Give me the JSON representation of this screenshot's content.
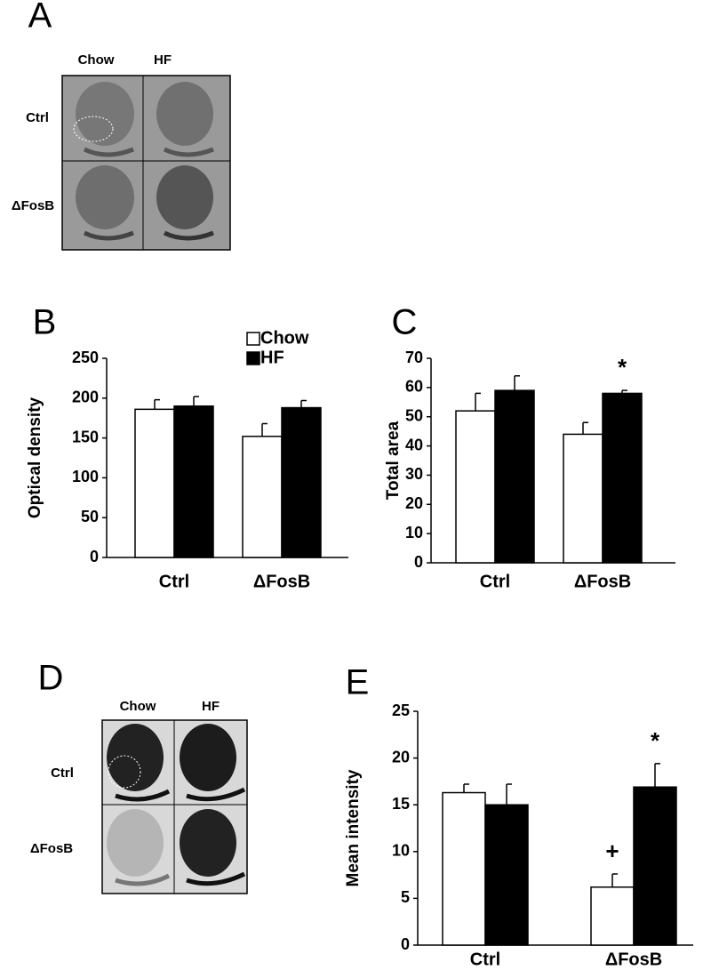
{
  "panel_labels": [
    "A",
    "B",
    "C",
    "D",
    "E"
  ],
  "image_panels": [
    {
      "columns": [
        "Chow",
        "HF"
      ],
      "rows": [
        "Ctrl",
        "ΔFosB"
      ]
    },
    {
      "columns": [
        "Chow",
        "HF"
      ],
      "rows": [
        "Ctrl",
        "ΔFosB"
      ]
    }
  ],
  "chart_data": [
    {
      "type": "bar",
      "y_label": "Optical density",
      "categories": [
        "Ctrl",
        "ΔFosB"
      ],
      "series": [
        {
          "name": "Chow",
          "color": "#ffffff",
          "values": [
            186,
            152
          ],
          "errors": [
            12,
            16
          ]
        },
        {
          "name": "HF",
          "color": "#000000",
          "values": [
            190,
            188
          ],
          "errors": [
            12,
            9
          ]
        }
      ],
      "ylim": [
        0,
        250
      ],
      "yticks": [
        0,
        50,
        100,
        150,
        200,
        250
      ],
      "legend": "top-right"
    },
    {
      "type": "bar",
      "y_label": "Total area",
      "categories": [
        "Ctrl",
        "ΔFosB"
      ],
      "series": [
        {
          "color": "#ffffff",
          "values": [
            52,
            44
          ],
          "errors": [
            6,
            4
          ]
        },
        {
          "color": "#000000",
          "values": [
            59,
            58
          ],
          "errors": [
            5,
            1
          ],
          "markers": [
            null,
            "*"
          ]
        }
      ],
      "ylim": [
        0,
        70
      ],
      "yticks": [
        0,
        10,
        20,
        30,
        40,
        50,
        60,
        70
      ]
    },
    {
      "type": "bar",
      "y_label": "Mean intensity",
      "categories": [
        "Ctrl",
        "ΔFosB"
      ],
      "series": [
        {
          "color": "#ffffff",
          "values": [
            16.3,
            6.2
          ],
          "errors": [
            0.9,
            1.4
          ],
          "markers": [
            null,
            "+"
          ]
        },
        {
          "color": "#000000",
          "values": [
            15,
            16.9
          ],
          "errors": [
            2.2,
            2.5
          ],
          "markers": [
            null,
            "*"
          ]
        }
      ],
      "ylim": [
        0,
        25
      ],
      "yticks": [
        0,
        5,
        10,
        15,
        20,
        25
      ]
    }
  ]
}
